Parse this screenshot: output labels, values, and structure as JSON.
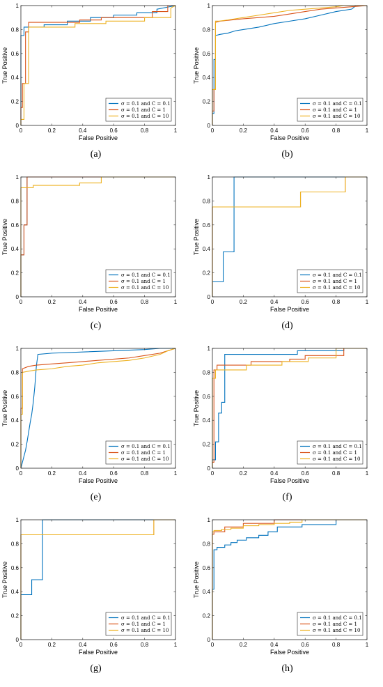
{
  "chart_data": [
    {
      "type": "line",
      "caption": "(a)",
      "xlabel": "False Positive",
      "ylabel": "True Positive",
      "xlim": [
        0,
        1
      ],
      "ylim": [
        0,
        1
      ],
      "xticks": [
        "0",
        "0.2",
        "0.4",
        "0.6",
        "0.8",
        "1"
      ],
      "yticks": [
        "0",
        "0.2",
        "0.4",
        "0.6",
        "0.8",
        "1"
      ],
      "legend_position": "bottom-right",
      "grid": false,
      "series": [
        {
          "name": "σ = 0.1 and C = 0.1",
          "color": "#0072BD",
          "x": [
            0,
            0,
            0.02,
            0.02,
            0.15,
            0.15,
            0.3,
            0.3,
            0.45,
            0.45,
            0.6,
            0.6,
            0.75,
            0.75,
            0.88,
            0.88,
            1
          ],
          "y": [
            0,
            0.75,
            0.75,
            0.82,
            0.82,
            0.84,
            0.84,
            0.87,
            0.87,
            0.9,
            0.9,
            0.92,
            0.92,
            0.94,
            0.94,
            0.97,
            1
          ]
        },
        {
          "name": "σ = 0.1 and C = 1",
          "color": "#D95319",
          "x": [
            0,
            0,
            0.01,
            0.01,
            0.03,
            0.03,
            0.05,
            0.05,
            0.38,
            0.38,
            0.52,
            0.52,
            0.85,
            0.85,
            0.95,
            0.95,
            1
          ],
          "y": [
            0,
            0.15,
            0.15,
            0.35,
            0.35,
            0.78,
            0.78,
            0.86,
            0.86,
            0.88,
            0.88,
            0.9,
            0.9,
            0.95,
            0.95,
            1,
            1
          ]
        },
        {
          "name": "σ = 0.1 and C = 10",
          "color": "#EDB120",
          "x": [
            0,
            0,
            0.02,
            0.02,
            0.05,
            0.05,
            0.35,
            0.35,
            0.55,
            0.55,
            0.8,
            0.8,
            0.97,
            0.97,
            1
          ],
          "y": [
            0,
            0.05,
            0.05,
            0.35,
            0.35,
            0.82,
            0.82,
            0.85,
            0.85,
            0.87,
            0.87,
            0.9,
            0.9,
            0.98,
            1
          ]
        }
      ]
    },
    {
      "type": "line",
      "caption": "(b)",
      "xlabel": "False Positive",
      "ylabel": "True Positive",
      "xlim": [
        0,
        1
      ],
      "ylim": [
        0,
        1
      ],
      "xticks": [
        "0",
        "0.2",
        "0.4",
        "0.6",
        "0.8",
        "1"
      ],
      "yticks": [
        "0",
        "0.2",
        "0.4",
        "0.6",
        "0.8",
        "1"
      ],
      "legend_position": "bottom-right",
      "grid": false,
      "series": [
        {
          "name": "σ = 0.1 and C = 0.1",
          "color": "#0072BD",
          "x": [
            0,
            0,
            0.01,
            0.01,
            0.02,
            0.02,
            0.05,
            0.1,
            0.15,
            0.2,
            0.3,
            0.4,
            0.5,
            0.6,
            0.7,
            0.8,
            0.9,
            0.93,
            1
          ],
          "y": [
            0,
            0.1,
            0.1,
            0.55,
            0.55,
            0.75,
            0.76,
            0.77,
            0.79,
            0.8,
            0.82,
            0.85,
            0.87,
            0.89,
            0.92,
            0.95,
            0.97,
            1,
            1
          ]
        },
        {
          "name": "σ = 0.1 and C = 1",
          "color": "#D95319",
          "x": [
            0,
            0,
            0.01,
            0.01,
            0.02,
            0.02,
            0.05,
            0.2,
            0.4,
            0.5,
            0.6,
            0.7,
            0.8,
            0.9,
            1
          ],
          "y": [
            0,
            0.12,
            0.12,
            0.3,
            0.3,
            0.86,
            0.87,
            0.89,
            0.91,
            0.93,
            0.95,
            0.97,
            0.98,
            0.99,
            1
          ]
        },
        {
          "name": "σ = 0.1 and C = 10",
          "color": "#EDB120",
          "x": [
            0,
            0,
            0.02,
            0.02,
            0.04,
            0.1,
            0.2,
            0.3,
            0.4,
            0.5,
            0.6,
            0.7,
            0.8,
            0.85,
            1
          ],
          "y": [
            0,
            0.3,
            0.3,
            0.87,
            0.87,
            0.88,
            0.9,
            0.92,
            0.94,
            0.96,
            0.97,
            0.98,
            0.99,
            1,
            1
          ]
        }
      ]
    },
    {
      "type": "line",
      "caption": "(c)",
      "xlabel": "False Positive",
      "ylabel": "True Positive",
      "xlim": [
        0,
        1
      ],
      "ylim": [
        0,
        1
      ],
      "xticks": [
        "0",
        "0.2",
        "0.4",
        "0.6",
        "0.8",
        "1"
      ],
      "yticks": [
        "0",
        "0.2",
        "0.4",
        "0.6",
        "0.8",
        "1"
      ],
      "legend_position": "bottom-right",
      "grid": false,
      "series": [
        {
          "name": "σ = 0.1 and C = 0.1",
          "color": "#0072BD",
          "x": [
            0,
            0,
            0.02,
            0.02,
            0.04,
            0.04,
            1
          ],
          "y": [
            0,
            0.35,
            0.35,
            0.6,
            0.6,
            1,
            1
          ]
        },
        {
          "name": "σ = 0.1 and C = 1",
          "color": "#D95319",
          "x": [
            0,
            0,
            0.02,
            0.02,
            0.04,
            0.04,
            1
          ],
          "y": [
            0,
            0.35,
            0.35,
            0.6,
            0.6,
            1,
            1
          ]
        },
        {
          "name": "σ = 0.1 and C = 10",
          "color": "#EDB120",
          "x": [
            0,
            0,
            0.08,
            0.08,
            0.38,
            0.38,
            0.52,
            0.52,
            1
          ],
          "y": [
            0,
            0.91,
            0.91,
            0.93,
            0.93,
            0.95,
            0.95,
            1,
            1
          ]
        }
      ]
    },
    {
      "type": "line",
      "caption": "(d)",
      "xlabel": "False Positive",
      "ylabel": "True Positive",
      "xlim": [
        0,
        1
      ],
      "ylim": [
        0,
        1
      ],
      "xticks": [
        "0",
        "0.2",
        "0.4",
        "0.6",
        "0.8",
        "1"
      ],
      "yticks": [
        "0",
        "0.2",
        "0.4",
        "0.6",
        "0.8",
        "1"
      ],
      "legend_position": "bottom-right",
      "grid": false,
      "series": [
        {
          "name": "σ = 0.1 and C = 0.1",
          "color": "#0072BD",
          "x": [
            0,
            0,
            0.07,
            0.07,
            0.14,
            0.14,
            1
          ],
          "y": [
            0,
            0.125,
            0.125,
            0.375,
            0.375,
            1,
            1
          ]
        },
        {
          "name": "σ = 0.1 and C = 1",
          "color": "#D95319",
          "x": [
            0,
            0,
            0.57,
            0.57,
            0.86,
            0.86,
            1
          ],
          "y": [
            0,
            0.75,
            0.75,
            0.875,
            0.875,
            1,
            1
          ]
        },
        {
          "name": "σ = 0.1 and C = 10",
          "color": "#EDB120",
          "x": [
            0,
            0,
            0.57,
            0.57,
            0.86,
            0.86,
            1
          ],
          "y": [
            0,
            0.75,
            0.75,
            0.875,
            0.875,
            1,
            1
          ]
        }
      ]
    },
    {
      "type": "line",
      "caption": "(e)",
      "xlabel": "False Positive",
      "ylabel": "True Positive",
      "xlim": [
        0,
        1
      ],
      "ylim": [
        0,
        1
      ],
      "xticks": [
        "0",
        "0.2",
        "0.4",
        "0.6",
        "0.8",
        "1"
      ],
      "yticks": [
        "0",
        "0.2",
        "0.4",
        "0.6",
        "0.8",
        "1"
      ],
      "legend_position": "bottom-right",
      "grid": false,
      "series": [
        {
          "name": "σ = 0.1 and C = 0.1",
          "color": "#0072BD",
          "x": [
            0,
            0.01,
            0.02,
            0.03,
            0.04,
            0.05,
            0.06,
            0.07,
            0.08,
            0.09,
            0.1,
            0.11,
            0.2,
            0.4,
            0.6,
            0.8,
            0.9,
            1
          ],
          "y": [
            0,
            0.05,
            0.1,
            0.15,
            0.22,
            0.3,
            0.38,
            0.45,
            0.55,
            0.68,
            0.85,
            0.95,
            0.96,
            0.97,
            0.98,
            0.99,
            1,
            1
          ]
        },
        {
          "name": "σ = 0.1 and C = 1",
          "color": "#D95319",
          "x": [
            0,
            0,
            0.01,
            0.01,
            0.05,
            0.1,
            0.2,
            0.3,
            0.4,
            0.5,
            0.6,
            0.7,
            0.8,
            0.9,
            0.95,
            1
          ],
          "y": [
            0,
            0.5,
            0.5,
            0.83,
            0.85,
            0.86,
            0.87,
            0.88,
            0.89,
            0.9,
            0.91,
            0.92,
            0.94,
            0.96,
            0.98,
            1
          ]
        },
        {
          "name": "σ = 0.1 and C = 10",
          "color": "#EDB120",
          "x": [
            0,
            0,
            0.01,
            0.01,
            0.05,
            0.1,
            0.2,
            0.3,
            0.4,
            0.5,
            0.6,
            0.7,
            0.8,
            0.9,
            0.95,
            1
          ],
          "y": [
            0,
            0.45,
            0.45,
            0.8,
            0.81,
            0.82,
            0.83,
            0.85,
            0.86,
            0.88,
            0.89,
            0.9,
            0.92,
            0.95,
            0.98,
            1
          ]
        }
      ]
    },
    {
      "type": "line",
      "caption": "(f)",
      "xlabel": "False Positive",
      "ylabel": "True Positive",
      "xlim": [
        0,
        1
      ],
      "ylim": [
        0,
        1
      ],
      "xticks": [
        "0",
        "0.2",
        "0.4",
        "0.6",
        "0.8",
        "1"
      ],
      "yticks": [
        "0",
        "0.2",
        "0.4",
        "0.6",
        "0.8",
        "1"
      ],
      "legend_position": "bottom-right",
      "grid": false,
      "series": [
        {
          "name": "σ = 0.1 and C = 0.1",
          "color": "#0072BD",
          "x": [
            0,
            0,
            0.02,
            0.02,
            0.04,
            0.04,
            0.06,
            0.06,
            0.08,
            0.08,
            0.55,
            0.55,
            0.85,
            0.85,
            1
          ],
          "y": [
            0,
            0.07,
            0.07,
            0.22,
            0.22,
            0.46,
            0.46,
            0.55,
            0.55,
            0.95,
            0.95,
            0.98,
            0.98,
            1,
            1
          ]
        },
        {
          "name": "σ = 0.1 and C = 1",
          "color": "#D95319",
          "x": [
            0,
            0,
            0.01,
            0.01,
            0.03,
            0.03,
            0.25,
            0.25,
            0.5,
            0.5,
            0.6,
            0.6,
            0.85,
            0.85,
            1
          ],
          "y": [
            0,
            0.05,
            0.05,
            0.82,
            0.82,
            0.86,
            0.86,
            0.89,
            0.89,
            0.91,
            0.91,
            0.94,
            0.94,
            1,
            1
          ]
        },
        {
          "name": "σ = 0.1 and C = 10",
          "color": "#EDB120",
          "x": [
            0,
            0,
            0.02,
            0.02,
            0.22,
            0.22,
            0.45,
            0.45,
            0.62,
            0.62,
            0.8,
            0.8,
            1
          ],
          "y": [
            0,
            0.75,
            0.75,
            0.82,
            0.82,
            0.86,
            0.86,
            0.89,
            0.89,
            0.92,
            0.92,
            1,
            1
          ]
        }
      ]
    },
    {
      "type": "line",
      "caption": "(g)",
      "xlabel": "False Positive",
      "ylabel": "True Positive",
      "xlim": [
        0,
        1
      ],
      "ylim": [
        0,
        1
      ],
      "xticks": [
        "0",
        "0.2",
        "0.4",
        "0.6",
        "0.8",
        "1"
      ],
      "yticks": [
        "0",
        "0.2",
        "0.4",
        "0.6",
        "0.8",
        "1"
      ],
      "legend_position": "bottom-right",
      "grid": false,
      "series": [
        {
          "name": "σ = 0.1 and C = 0.1",
          "color": "#0072BD",
          "x": [
            0,
            0,
            0.07,
            0.07,
            0.14,
            0.14,
            1
          ],
          "y": [
            0,
            0.375,
            0.375,
            0.5,
            0.5,
            1,
            1
          ]
        },
        {
          "name": "σ = 0.1 and C = 1",
          "color": "#D95319",
          "x": [
            0,
            0,
            0.86,
            0.86,
            1
          ],
          "y": [
            0,
            0.875,
            0.875,
            1,
            1
          ]
        },
        {
          "name": "σ = 0.1 and C = 10",
          "color": "#EDB120",
          "x": [
            0,
            0,
            0.86,
            0.86,
            1
          ],
          "y": [
            0,
            0.875,
            0.875,
            1,
            1
          ]
        }
      ]
    },
    {
      "type": "line",
      "caption": "(h)",
      "xlabel": "False Positive",
      "ylabel": "True Positive",
      "xlim": [
        0,
        1
      ],
      "ylim": [
        0,
        1
      ],
      "xticks": [
        "0",
        "0.2",
        "0.4",
        "0.6",
        "0.8",
        "1"
      ],
      "yticks": [
        "0",
        "0.2",
        "0.4",
        "0.6",
        "0.8",
        "1"
      ],
      "legend_position": "bottom-right",
      "grid": false,
      "series": [
        {
          "name": "σ = 0.1 and C = 0.1",
          "color": "#0072BD",
          "x": [
            0,
            0,
            0.01,
            0.01,
            0.03,
            0.03,
            0.08,
            0.08,
            0.12,
            0.12,
            0.16,
            0.16,
            0.22,
            0.22,
            0.3,
            0.3,
            0.36,
            0.36,
            0.42,
            0.42,
            0.58,
            0.58,
            0.8,
            0.8,
            1
          ],
          "y": [
            0,
            0.42,
            0.42,
            0.75,
            0.75,
            0.77,
            0.77,
            0.79,
            0.79,
            0.81,
            0.81,
            0.83,
            0.83,
            0.85,
            0.85,
            0.87,
            0.87,
            0.9,
            0.9,
            0.94,
            0.94,
            0.96,
            0.96,
            1,
            1
          ]
        },
        {
          "name": "σ = 0.1 and C = 1",
          "color": "#D95319",
          "x": [
            0,
            0,
            0.01,
            0.01,
            0.08,
            0.08,
            0.2,
            0.2,
            0.4,
            0.4,
            1
          ],
          "y": [
            0,
            0.88,
            0.88,
            0.9,
            0.9,
            0.94,
            0.94,
            0.97,
            0.97,
            1,
            1
          ]
        },
        {
          "name": "σ = 0.1 and C = 10",
          "color": "#EDB120",
          "x": [
            0,
            0,
            0.01,
            0.01,
            0.06,
            0.06,
            0.12,
            0.12,
            0.2,
            0.2,
            0.3,
            0.3,
            0.4,
            0.4,
            0.5,
            0.5,
            0.58,
            0.58,
            1
          ],
          "y": [
            0,
            0.9,
            0.9,
            0.91,
            0.91,
            0.92,
            0.92,
            0.93,
            0.93,
            0.95,
            0.95,
            0.96,
            0.96,
            0.97,
            0.97,
            0.98,
            0.98,
            1,
            1
          ]
        }
      ]
    }
  ]
}
